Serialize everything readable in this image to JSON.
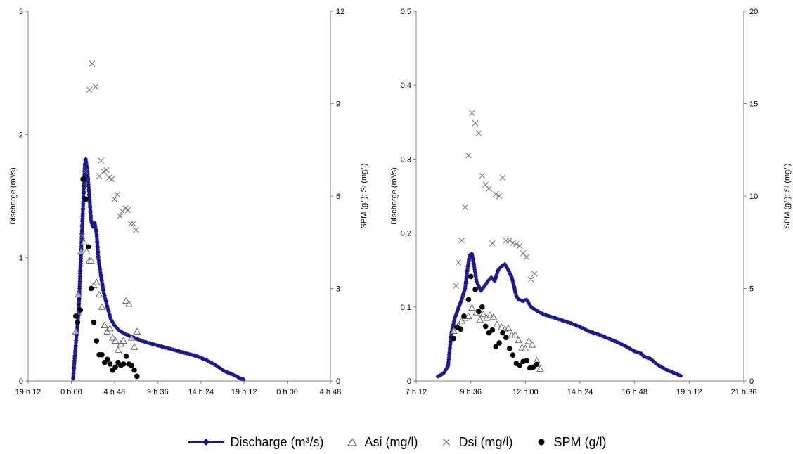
{
  "chart_data": [
    {
      "type": "scatter",
      "xlabel": "",
      "ylabel": "Discharge (m³/s)",
      "y2label": "SPM (g/l); Si (mg/l)",
      "x_ticks": [
        "19 h 12",
        "0 h 00",
        "4 h 48",
        "9 h 36",
        "14 h 24",
        "19 h 12",
        "0 h 00",
        "4 h 48"
      ],
      "xlim_hours": [
        19.2,
        52.8
      ],
      "ylim": [
        0,
        3
      ],
      "y_ticks": [
        "0",
        "1",
        "2",
        "3"
      ],
      "y2lim": [
        0,
        12
      ],
      "y2_ticks": [
        "0",
        "3",
        "6",
        "9",
        "12"
      ],
      "series": [
        {
          "name": "Discharge (m³/s)",
          "axis": "left",
          "marker": "diamond-line",
          "points": [
            [
              24.2,
              0.02
            ],
            [
              24.5,
              0.3
            ],
            [
              24.8,
              0.55
            ],
            [
              25.0,
              0.9
            ],
            [
              25.3,
              1.4
            ],
            [
              25.5,
              1.75
            ],
            [
              25.6,
              1.8
            ],
            [
              25.8,
              1.7
            ],
            [
              26.0,
              1.5
            ],
            [
              26.2,
              1.3
            ],
            [
              26.4,
              1.25
            ],
            [
              26.6,
              1.28
            ],
            [
              26.8,
              1.2
            ],
            [
              27.0,
              1.0
            ],
            [
              27.3,
              0.85
            ],
            [
              27.6,
              0.72
            ],
            [
              28.0,
              0.6
            ],
            [
              28.4,
              0.5
            ],
            [
              28.8,
              0.45
            ],
            [
              29.3,
              0.41
            ],
            [
              30.0,
              0.38
            ],
            [
              31.0,
              0.35
            ],
            [
              32.0,
              0.32
            ],
            [
              33.0,
              0.3
            ],
            [
              34.0,
              0.28
            ],
            [
              35.0,
              0.26
            ],
            [
              36.0,
              0.24
            ],
            [
              37.0,
              0.22
            ],
            [
              38.0,
              0.2
            ],
            [
              39.0,
              0.17
            ],
            [
              40.0,
              0.13
            ],
            [
              41.0,
              0.08
            ],
            [
              42.0,
              0.05
            ],
            [
              42.8,
              0.02
            ],
            [
              43.3,
              0.01
            ]
          ]
        },
        {
          "name": "Asi (mg/l)",
          "axis": "right",
          "marker": "triangle-open",
          "points": [
            [
              24.5,
              1.6
            ],
            [
              24.8,
              2.8
            ],
            [
              25.1,
              4.2
            ],
            [
              25.4,
              4.5
            ],
            [
              25.7,
              4.2
            ],
            [
              26.0,
              3.9
            ],
            [
              26.2,
              3.9
            ],
            [
              26.5,
              3.1
            ],
            [
              26.8,
              3.2
            ],
            [
              27.1,
              2.8
            ],
            [
              27.4,
              2.4
            ],
            [
              27.7,
              1.8
            ],
            [
              28.0,
              1.6
            ],
            [
              28.3,
              1.7
            ],
            [
              28.6,
              1.4
            ],
            [
              28.9,
              1.3
            ],
            [
              29.2,
              1.0
            ],
            [
              29.5,
              1.2
            ],
            [
              29.8,
              1.3
            ],
            [
              30.1,
              2.6
            ],
            [
              30.4,
              2.5
            ],
            [
              30.7,
              1.4
            ],
            [
              31.0,
              1.1
            ],
            [
              31.3,
              1.6
            ]
          ]
        },
        {
          "name": "Dsi (mg/l)",
          "axis": "right",
          "marker": "x",
          "points": [
            [
              24.9,
              2.2
            ],
            [
              25.2,
              4.7
            ],
            [
              25.6,
              6.8
            ],
            [
              26.0,
              9.45
            ],
            [
              26.3,
              10.3
            ],
            [
              26.7,
              9.55
            ],
            [
              27.1,
              6.65
            ],
            [
              27.3,
              7.15
            ],
            [
              27.6,
              6.8
            ],
            [
              27.9,
              6.85
            ],
            [
              28.2,
              6.6
            ],
            [
              28.5,
              6.55
            ],
            [
              28.8,
              5.9
            ],
            [
              29.1,
              6.05
            ],
            [
              29.4,
              5.35
            ],
            [
              29.7,
              5.5
            ],
            [
              30.0,
              5.6
            ],
            [
              30.3,
              5.55
            ],
            [
              30.6,
              5.1
            ],
            [
              30.9,
              5.1
            ],
            [
              31.2,
              4.9
            ]
          ]
        },
        {
          "name": "SPM (g/l)",
          "axis": "right",
          "marker": "dot",
          "points": [
            [
              24.5,
              2.1
            ],
            [
              24.7,
              1.9
            ],
            [
              25.0,
              2.3
            ],
            [
              25.3,
              6.55
            ],
            [
              25.6,
              5.9
            ],
            [
              25.9,
              4.35
            ],
            [
              26.2,
              3.0
            ],
            [
              26.5,
              1.9
            ],
            [
              26.8,
              1.3
            ],
            [
              27.1,
              0.85
            ],
            [
              27.4,
              0.85
            ],
            [
              27.7,
              0.6
            ],
            [
              28.0,
              0.7
            ],
            [
              28.3,
              0.55
            ],
            [
              28.6,
              0.35
            ],
            [
              28.9,
              0.45
            ],
            [
              29.2,
              0.6
            ],
            [
              29.5,
              0.5
            ],
            [
              29.8,
              0.55
            ],
            [
              30.1,
              0.8
            ],
            [
              30.4,
              0.55
            ],
            [
              30.7,
              0.5
            ],
            [
              31.0,
              0.35
            ],
            [
              31.3,
              0.15
            ]
          ]
        }
      ]
    },
    {
      "type": "scatter",
      "xlabel": "",
      "ylabel": "Discharge (m³/s)",
      "y2label": "SPM (g/l); Si (mg/l)",
      "x_ticks": [
        "7 h 12",
        "9 h 36",
        "12 h 00",
        "14 h 24",
        "16 h 48",
        "19 h 12",
        "21 h 36"
      ],
      "xlim_hours": [
        7.2,
        21.6
      ],
      "ylim": [
        0,
        0.5
      ],
      "y_ticks": [
        "0",
        "0,1",
        "0,2",
        "0,3",
        "0,4",
        "0,5"
      ],
      "y2lim": [
        0,
        20
      ],
      "y2_ticks": [
        "0",
        "5",
        "10",
        "15",
        "20"
      ],
      "series": [
        {
          "name": "Discharge (m³/s)",
          "axis": "left",
          "marker": "diamond-line",
          "points": [
            [
              8.15,
              0.006
            ],
            [
              8.4,
              0.01
            ],
            [
              8.6,
              0.02
            ],
            [
              8.75,
              0.065
            ],
            [
              8.9,
              0.085
            ],
            [
              9.05,
              0.098
            ],
            [
              9.2,
              0.11
            ],
            [
              9.35,
              0.125
            ],
            [
              9.45,
              0.15
            ],
            [
              9.55,
              0.17
            ],
            [
              9.65,
              0.172
            ],
            [
              9.75,
              0.155
            ],
            [
              9.85,
              0.135
            ],
            [
              9.95,
              0.128
            ],
            [
              10.05,
              0.122
            ],
            [
              10.2,
              0.128
            ],
            [
              10.35,
              0.135
            ],
            [
              10.5,
              0.14
            ],
            [
              10.65,
              0.135
            ],
            [
              10.8,
              0.15
            ],
            [
              10.95,
              0.155
            ],
            [
              11.1,
              0.158
            ],
            [
              11.25,
              0.15
            ],
            [
              11.4,
              0.14
            ],
            [
              11.5,
              0.128
            ],
            [
              11.6,
              0.115
            ],
            [
              11.7,
              0.11
            ],
            [
              11.9,
              0.108
            ],
            [
              12.05,
              0.11
            ],
            [
              12.25,
              0.1
            ],
            [
              12.5,
              0.095
            ],
            [
              12.8,
              0.09
            ],
            [
              13.2,
              0.086
            ],
            [
              13.6,
              0.082
            ],
            [
              14.0,
              0.078
            ],
            [
              14.4,
              0.073
            ],
            [
              14.8,
              0.067
            ],
            [
              15.2,
              0.063
            ],
            [
              15.6,
              0.058
            ],
            [
              16.0,
              0.053
            ],
            [
              16.4,
              0.047
            ],
            [
              16.8,
              0.04
            ],
            [
              17.1,
              0.037
            ],
            [
              17.2,
              0.033
            ],
            [
              17.5,
              0.03
            ],
            [
              17.8,
              0.022
            ],
            [
              18.2,
              0.015
            ],
            [
              18.6,
              0.01
            ],
            [
              18.9,
              0.006
            ]
          ]
        },
        {
          "name": "Asi (mg/l)",
          "axis": "right",
          "marker": "triangle-open",
          "points": [
            [
              8.85,
              2.7
            ],
            [
              9.05,
              3.0
            ],
            [
              9.2,
              3.25
            ],
            [
              9.35,
              3.4
            ],
            [
              9.5,
              3.5
            ],
            [
              9.65,
              3.95
            ],
            [
              9.85,
              3.7
            ],
            [
              10.0,
              3.3
            ],
            [
              10.15,
              3.6
            ],
            [
              10.3,
              3.4
            ],
            [
              10.45,
              3.55
            ],
            [
              10.6,
              3.45
            ],
            [
              10.75,
              3.05
            ],
            [
              10.95,
              2.9
            ],
            [
              11.1,
              2.8
            ],
            [
              11.25,
              2.85
            ],
            [
              11.4,
              2.5
            ],
            [
              11.55,
              2.5
            ],
            [
              11.7,
              2.2
            ],
            [
              11.85,
              1.8
            ],
            [
              12.0,
              1.75
            ],
            [
              12.15,
              2.15
            ],
            [
              12.3,
              1.95
            ],
            [
              12.5,
              1.1
            ],
            [
              12.65,
              0.65
            ]
          ]
        },
        {
          "name": "Dsi (mg/l)",
          "axis": "right",
          "marker": "x",
          "points": [
            [
              8.95,
              5.15
            ],
            [
              9.05,
              6.4
            ],
            [
              9.2,
              7.6
            ],
            [
              9.35,
              9.4
            ],
            [
              9.5,
              12.2
            ],
            [
              9.65,
              14.5
            ],
            [
              9.8,
              13.95
            ],
            [
              9.95,
              13.4
            ],
            [
              10.1,
              11.1
            ],
            [
              10.25,
              10.6
            ],
            [
              10.4,
              10.4
            ],
            [
              10.55,
              7.45
            ],
            [
              10.7,
              10.1
            ],
            [
              10.85,
              10.0
            ],
            [
              11.0,
              11.0
            ],
            [
              11.15,
              7.6
            ],
            [
              11.3,
              7.6
            ],
            [
              11.45,
              7.45
            ],
            [
              11.6,
              7.4
            ],
            [
              11.75,
              7.3
            ],
            [
              11.9,
              6.9
            ],
            [
              12.05,
              6.7
            ],
            [
              12.25,
              5.5
            ],
            [
              12.4,
              5.8
            ]
          ]
        },
        {
          "name": "SPM (g/l)",
          "axis": "right",
          "marker": "dot",
          "points": [
            [
              8.85,
              2.3
            ],
            [
              9.0,
              2.9
            ],
            [
              9.15,
              2.8
            ],
            [
              9.3,
              3.5
            ],
            [
              9.5,
              4.4
            ],
            [
              9.6,
              5.65
            ],
            [
              9.8,
              4.95
            ],
            [
              9.95,
              3.75
            ],
            [
              10.1,
              4.0
            ],
            [
              10.25,
              2.95
            ],
            [
              10.4,
              2.6
            ],
            [
              10.55,
              2.75
            ],
            [
              10.7,
              1.85
            ],
            [
              10.85,
              2.05
            ],
            [
              11.0,
              2.6
            ],
            [
              11.15,
              2.35
            ],
            [
              11.3,
              1.75
            ],
            [
              11.45,
              1.4
            ],
            [
              11.6,
              0.95
            ],
            [
              11.75,
              0.85
            ],
            [
              11.9,
              1.05
            ],
            [
              12.05,
              1.1
            ],
            [
              12.2,
              0.7
            ],
            [
              12.35,
              0.75
            ],
            [
              12.5,
              0.9
            ]
          ]
        }
      ]
    }
  ],
  "legend": {
    "discharge": "Discharge (m³/s)",
    "asi": "Asi (mg/l)",
    "dsi": "Dsi (mg/l)",
    "spm": "SPM (g/l)"
  },
  "colors": {
    "discharge": "#1a1a8c",
    "asi": "#606060",
    "dsi": "#707070",
    "spm": "#000000",
    "axis": "#808080"
  }
}
